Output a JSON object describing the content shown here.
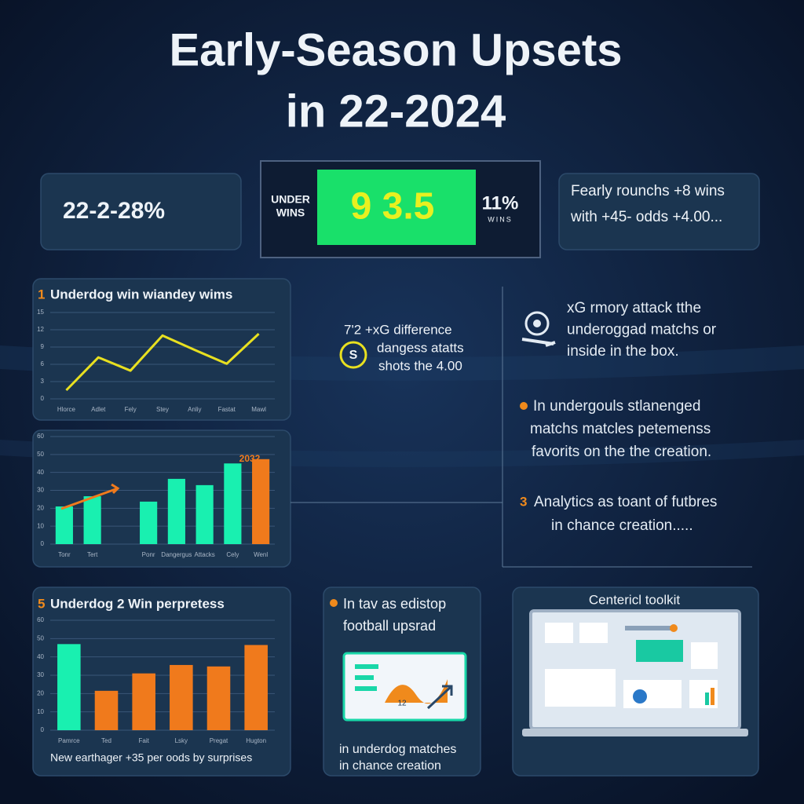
{
  "header": {
    "title_lines": [
      "Early-Season Upsets",
      "in 22-2024"
    ]
  },
  "stats": {
    "left": "22-2-28%",
    "scoreboard": {
      "label_lines": [
        "UNDER",
        "WINS"
      ],
      "value": "9 3.5",
      "side": "11%",
      "side_sub": "WINS"
    },
    "right_lines": [
      "Fearly rounchs +8 wins",
      "with +45- odds +4.00..."
    ]
  },
  "chart_data": [
    {
      "type": "line",
      "number": "1",
      "title": "Underdog win wiandey wims",
      "categories": [
        "Hlorce",
        "Adlet",
        "Fely",
        "Stey",
        "Anliy",
        "Fastat",
        "Mawl"
      ],
      "values": [
        1.5,
        7.2,
        4.9,
        11,
        8.5,
        6.1,
        11.3
      ],
      "color": "#e8e020",
      "ylim": [
        0,
        15
      ],
      "yticks": [
        0,
        3,
        6,
        9,
        12,
        15
      ],
      "grid": true
    },
    {
      "type": "bar",
      "categories": [
        "Tonr",
        "Tert",
        null,
        "Ponr",
        "Dangergus",
        "Attacks",
        "Cely",
        "Wenl"
      ],
      "values": [
        21,
        26.7,
        null,
        23.7,
        36.4,
        32.9,
        45,
        47.4
      ],
      "colors": [
        "#19f0b0",
        "#19f0b0",
        "#19f0b0",
        "#19f0b0",
        "#19f0b0",
        "#19f0b0",
        "#19f0b0",
        "#f07a1c"
      ],
      "annotation": "2032",
      "ylim": [
        0,
        60
      ],
      "yticks": [
        0,
        10,
        20,
        30,
        40,
        50,
        60
      ],
      "grid": true
    },
    {
      "type": "bar",
      "number": "5",
      "title": "Underdog 2 Win perpretess",
      "categories": [
        "Pamrce",
        "Ted",
        "Fait",
        "Lsky",
        "Pregat",
        "Hugton"
      ],
      "values": [
        47,
        21.5,
        31,
        35.6,
        34.8,
        46.5
      ],
      "colors": [
        "#19f0b0",
        "#f07a1c",
        "#f07a1c",
        "#f07a1c",
        "#f07a1c",
        "#f07a1c"
      ],
      "ylim": [
        0,
        60
      ],
      "yticks": [
        0,
        10,
        20,
        30,
        40,
        50,
        60
      ],
      "grid": true,
      "footer": "New earthager +35 per oods by surprises"
    }
  ],
  "callout": {
    "lines": [
      "7'2 +xG difference",
      "dangess atatts",
      "shots the 4.00"
    ],
    "icon": "S"
  },
  "notes": [
    {
      "lines": [
        "xG rmory attack tthe",
        "underoggad matchs or",
        "inside in the box."
      ]
    },
    {
      "lines": [
        "In undergouls stlanenged",
        "matchs matcles petemenss",
        "favorits on the the creation."
      ]
    },
    {
      "number": "3",
      "lines": [
        "Analytics as toant of futbres",
        "in chance creation....."
      ]
    }
  ],
  "cards": {
    "middle": {
      "lines": [
        "In tav as edistop",
        "football upsrad"
      ],
      "screen_label": "12",
      "footer_lines": [
        "in underdog matches",
        "in chance creation"
      ]
    },
    "right": {
      "title": "Centericl toolkit"
    }
  }
}
